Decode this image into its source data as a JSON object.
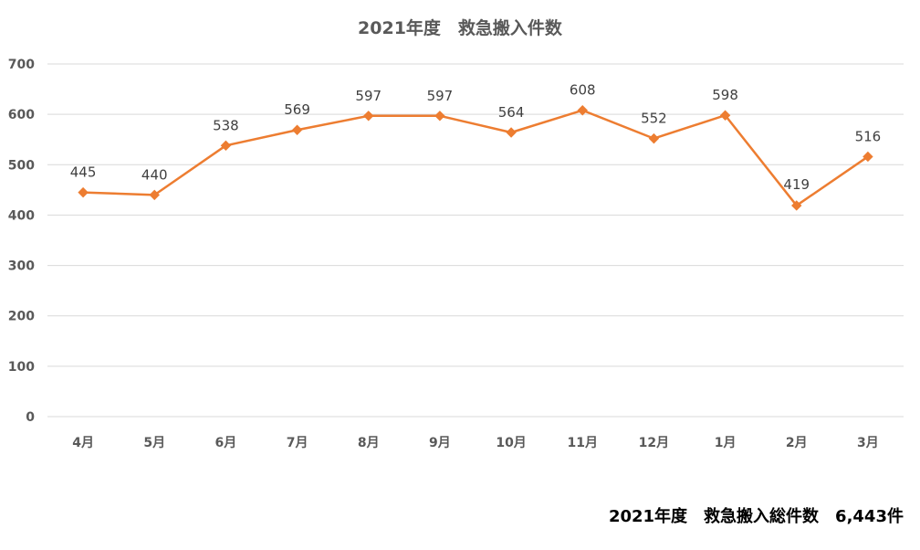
{
  "chart_data": {
    "type": "line",
    "title": "2021年度　救急搬入件数",
    "xlabel": "",
    "ylabel": "",
    "categories": [
      "4月",
      "5月",
      "6月",
      "7月",
      "8月",
      "9月",
      "10月",
      "11月",
      "12月",
      "1月",
      "2月",
      "3月"
    ],
    "series": [
      {
        "values": [
          445,
          440,
          538,
          569,
          597,
          597,
          564,
          608,
          552,
          598,
          419,
          516
        ],
        "color": "#ED7D31",
        "marker": "diamond"
      }
    ],
    "ylim": [
      0,
      700
    ],
    "yticks": [
      0,
      100,
      200,
      300,
      400,
      500,
      600,
      700
    ],
    "grid": true,
    "data_labels": true
  },
  "footer": {
    "total_text": "2021年度　救急搬入総件数　6,443件"
  }
}
